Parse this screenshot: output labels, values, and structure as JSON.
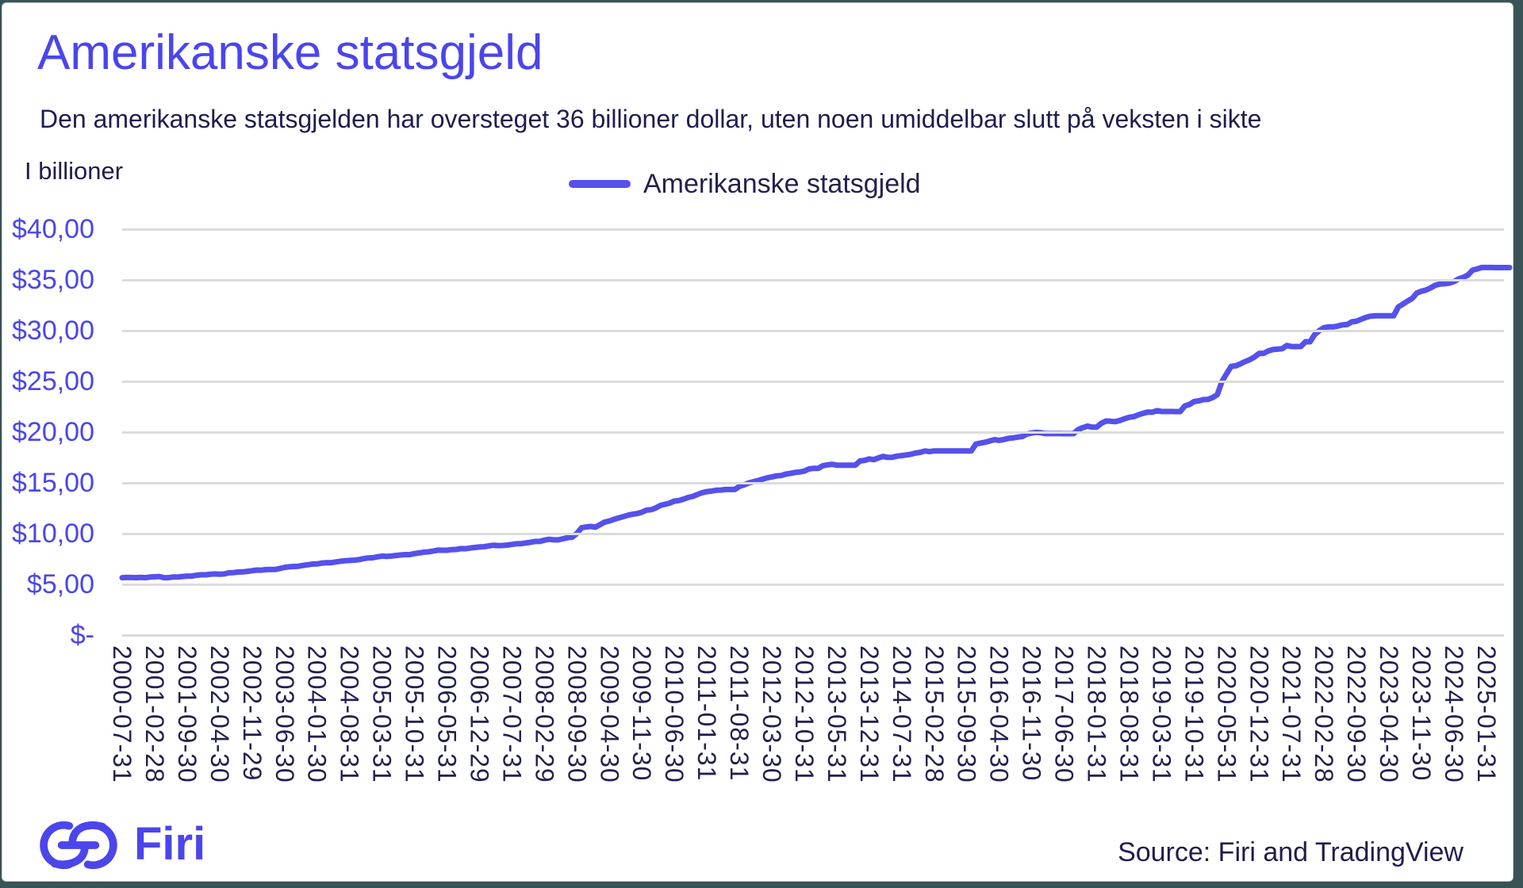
{
  "title": "Amerikanske statsgjeld",
  "subtitle": "Den amerikanske statsgjelden har oversteget 36 billioner dollar, uten noen umiddelbar slutt på veksten i sikte",
  "axis_unit_label": "I billioner",
  "legend": {
    "label": "Amerikanske statsgjeld"
  },
  "footer": {
    "brand": "Firi",
    "source": "Source: Firi and TradingView"
  },
  "colors": {
    "accent": "#4b45ec",
    "line": "#5551ec",
    "navy": "#1f1d4d",
    "grid": "#dcdcdc",
    "frame": "#3a5356"
  },
  "chart_data": {
    "type": "line",
    "title": "Amerikanske statsgjeld",
    "ylabel": "I billioner",
    "unit": "USD billioner (trillions)",
    "ylim": [
      0,
      40
    ],
    "grid": "horizontal",
    "legend_position": "top-center",
    "y_tick_values": [
      40,
      35,
      30,
      25,
      20,
      15,
      10,
      5,
      0
    ],
    "y_tick_labels": [
      "$40,00",
      "$35,00",
      "$30,00",
      "$25,00",
      "$20,00",
      "$15,00",
      "$10,00",
      "$5,00",
      "$-"
    ],
    "x_tick_labels": [
      "2000-07-31",
      "2001-02-28",
      "2001-09-30",
      "2002-04-30",
      "2002-11-29",
      "2003-06-30",
      "2004-01-30",
      "2004-08-31",
      "2005-03-31",
      "2005-10-31",
      "2006-05-31",
      "2006-12-29",
      "2007-07-31",
      "2008-02-29",
      "2008-09-30",
      "2009-04-30",
      "2009-11-30",
      "2010-06-30",
      "2011-01-31",
      "2011-08-31",
      "2012-03-30",
      "2012-10-31",
      "2013-05-31",
      "2013-12-31",
      "2014-07-31",
      "2015-02-28",
      "2015-09-30",
      "2016-04-30",
      "2016-11-30",
      "2017-06-30",
      "2018-01-31",
      "2018-08-31",
      "2019-03-31",
      "2019-10-31",
      "2020-05-31",
      "2020-12-31",
      "2021-07-31",
      "2022-02-28",
      "2022-09-30",
      "2023-04-30",
      "2023-11-30",
      "2024-06-30",
      "2025-01-31"
    ],
    "x_tick_interval_months": 7,
    "frequency": "monthly",
    "x_start": "2000-07",
    "x_end": "2025-06",
    "series": [
      {
        "name": "Amerikanske statsgjeld",
        "values": [
          5.66,
          5.68,
          5.67,
          5.66,
          5.69,
          5.66,
          5.72,
          5.74,
          5.77,
          5.66,
          5.66,
          5.73,
          5.72,
          5.77,
          5.81,
          5.82,
          5.89,
          5.94,
          5.94,
          6.0,
          6.02,
          5.99,
          6.02,
          6.13,
          6.16,
          6.21,
          6.23,
          6.28,
          6.34,
          6.41,
          6.4,
          6.45,
          6.46,
          6.46,
          6.56,
          6.67,
          6.73,
          6.76,
          6.78,
          6.87,
          6.93,
          7.0,
          7.01,
          7.09,
          7.13,
          7.13,
          7.2,
          7.27,
          7.32,
          7.35,
          7.38,
          7.43,
          7.53,
          7.6,
          7.62,
          7.71,
          7.78,
          7.76,
          7.78,
          7.84,
          7.89,
          7.93,
          7.93,
          8.03,
          8.09,
          8.17,
          8.2,
          8.27,
          8.37,
          8.36,
          8.36,
          8.42,
          8.44,
          8.52,
          8.51,
          8.58,
          8.63,
          8.68,
          8.71,
          8.78,
          8.85,
          8.82,
          8.83,
          8.87,
          8.93,
          9.0,
          9.01,
          9.08,
          9.15,
          9.23,
          9.23,
          9.36,
          9.44,
          9.38,
          9.38,
          9.49,
          9.59,
          9.65,
          10.02,
          10.57,
          10.66,
          10.7,
          10.63,
          10.88,
          11.13,
          11.24,
          11.41,
          11.55,
          11.67,
          11.81,
          11.91,
          11.98,
          12.11,
          12.31,
          12.35,
          12.53,
          12.77,
          12.89,
          13.0,
          13.2,
          13.26,
          13.4,
          13.56,
          13.67,
          13.86,
          14.03,
          14.13,
          14.19,
          14.27,
          14.29,
          14.34,
          14.34,
          14.34,
          14.64,
          14.79,
          14.99,
          15.11,
          15.22,
          15.36,
          15.49,
          15.58,
          15.69,
          15.72,
          15.86,
          15.93,
          16.02,
          16.07,
          16.16,
          16.37,
          16.43,
          16.43,
          16.69,
          16.77,
          16.83,
          16.74,
          16.74,
          16.74,
          16.74,
          16.74,
          17.16,
          17.22,
          17.35,
          17.29,
          17.46,
          17.6,
          17.51,
          17.52,
          17.63,
          17.69,
          17.75,
          17.82,
          17.94,
          18.01,
          18.14,
          18.08,
          18.15,
          18.15,
          18.15,
          18.15,
          18.15,
          18.15,
          18.15,
          18.15,
          18.15,
          18.83,
          18.92,
          19.01,
          19.13,
          19.26,
          19.19,
          19.27,
          19.38,
          19.43,
          19.51,
          19.57,
          19.81,
          19.91,
          19.98,
          19.94,
          19.85,
          19.85,
          19.85,
          19.85,
          19.84,
          19.84,
          19.84,
          20.24,
          20.44,
          20.59,
          20.49,
          20.49,
          20.86,
          21.09,
          21.07,
          21.03,
          21.15,
          21.31,
          21.46,
          21.52,
          21.7,
          21.85,
          21.97,
          21.96,
          22.12,
          22.03,
          22.03,
          22.03,
          22.02,
          22.02,
          22.57,
          22.72,
          23.01,
          23.08,
          23.2,
          23.22,
          23.41,
          23.69,
          24.97,
          25.75,
          26.48,
          26.53,
          26.73,
          26.95,
          27.13,
          27.4,
          27.75,
          27.76,
          28.0,
          28.13,
          28.17,
          28.22,
          28.53,
          28.43,
          28.43,
          28.43,
          28.91,
          28.91,
          29.62,
          30.01,
          30.29,
          30.37,
          30.37,
          30.45,
          30.57,
          30.6,
          30.87,
          30.93,
          31.12,
          31.3,
          31.42,
          31.46,
          31.46,
          31.46,
          31.46,
          31.46,
          32.33,
          32.61,
          32.91,
          33.17,
          33.7,
          33.88,
          34.0,
          34.22,
          34.47,
          34.59,
          34.62,
          34.67,
          34.83,
          35.1,
          35.25,
          35.46,
          35.95,
          36.08,
          36.22,
          36.22,
          36.22,
          36.21,
          36.21,
          36.21,
          36.21
        ]
      }
    ]
  }
}
